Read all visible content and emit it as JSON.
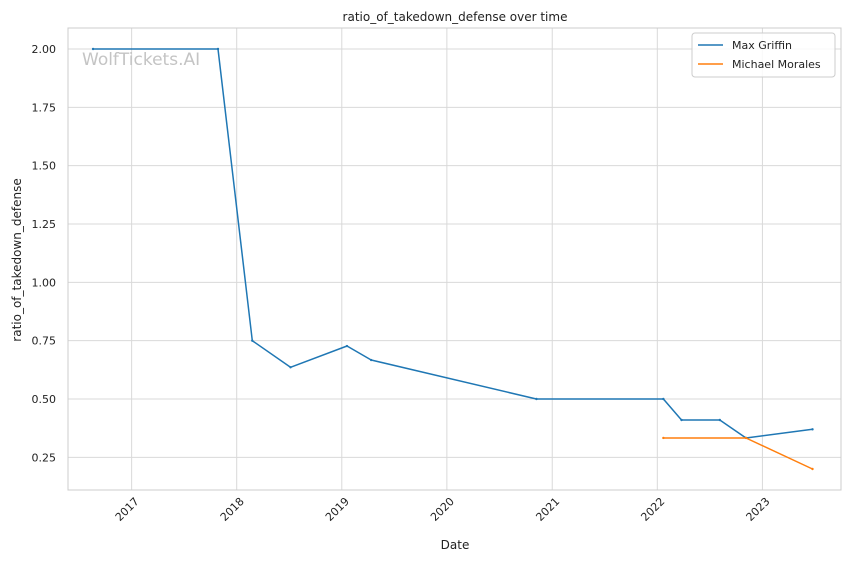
{
  "chart_data": {
    "type": "line",
    "title": "ratio_of_takedown_defense over time",
    "xlabel": "Date",
    "ylabel": "ratio_of_takedown_defense",
    "watermark": "WolfTickets.AI",
    "xlim": [
      "2016-05-25",
      "2023-10-01"
    ],
    "ylim": [
      0.11,
      2.09
    ],
    "x_ticks": [
      "2017",
      "2018",
      "2019",
      "2020",
      "2021",
      "2022",
      "2023"
    ],
    "y_ticks": [
      "0.25",
      "0.50",
      "0.75",
      "1.00",
      "1.25",
      "1.50",
      "1.75",
      "2.00"
    ],
    "grid": true,
    "legend_position": "top-right",
    "series": [
      {
        "name": "Max Griffin",
        "color": "#1f77b4",
        "points": [
          {
            "x": "2016-08-20",
            "y": 2.0
          },
          {
            "x": "2017-10-28",
            "y": 2.0
          },
          {
            "x": "2018-02-24",
            "y": 0.75
          },
          {
            "x": "2018-07-07",
            "y": 0.636
          },
          {
            "x": "2019-01-19",
            "y": 0.727
          },
          {
            "x": "2019-04-13",
            "y": 0.667
          },
          {
            "x": "2020-11-07",
            "y": 0.5
          },
          {
            "x": "2022-01-22",
            "y": 0.5
          },
          {
            "x": "2022-03-26",
            "y": 0.41
          },
          {
            "x": "2022-08-06",
            "y": 0.41
          },
          {
            "x": "2022-11-05",
            "y": 0.333
          },
          {
            "x": "2023-06-24",
            "y": 0.37
          }
        ]
      },
      {
        "name": "Michael Morales",
        "color": "#ff7f0e",
        "points": [
          {
            "x": "2022-01-22",
            "y": 0.333
          },
          {
            "x": "2022-11-05",
            "y": 0.333
          },
          {
            "x": "2023-06-24",
            "y": 0.2
          }
        ]
      }
    ]
  }
}
